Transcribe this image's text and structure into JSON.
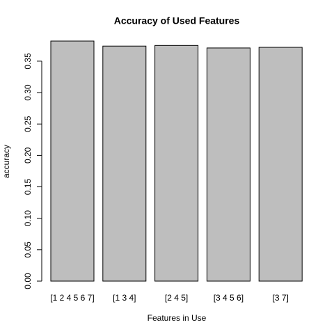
{
  "chart_data": {
    "type": "bar",
    "title": "Accuracy of Used Features",
    "x_label": "Features in Use",
    "y_label": "accuracy",
    "categories": [
      "[1 2 4 5 6 7]",
      "[1 3 4]",
      "[2 4 5]",
      "[3 4 5 6]",
      "[3 7]"
    ],
    "values": [
      0.382,
      0.374,
      0.375,
      0.371,
      0.372
    ],
    "color": "#bebebe",
    "ylim": [
      0,
      0.382
    ],
    "yticks": [
      {
        "value": 0,
        "label": "0.00"
      },
      0.05,
      {
        "value": 0.1,
        "label": "0.10"
      },
      0.15,
      {
        "value": 0.2,
        "label": "0.20"
      },
      0.25,
      {
        "value": 0.3,
        "label": "0.30"
      },
      0.35
    ],
    "grid": false
  }
}
